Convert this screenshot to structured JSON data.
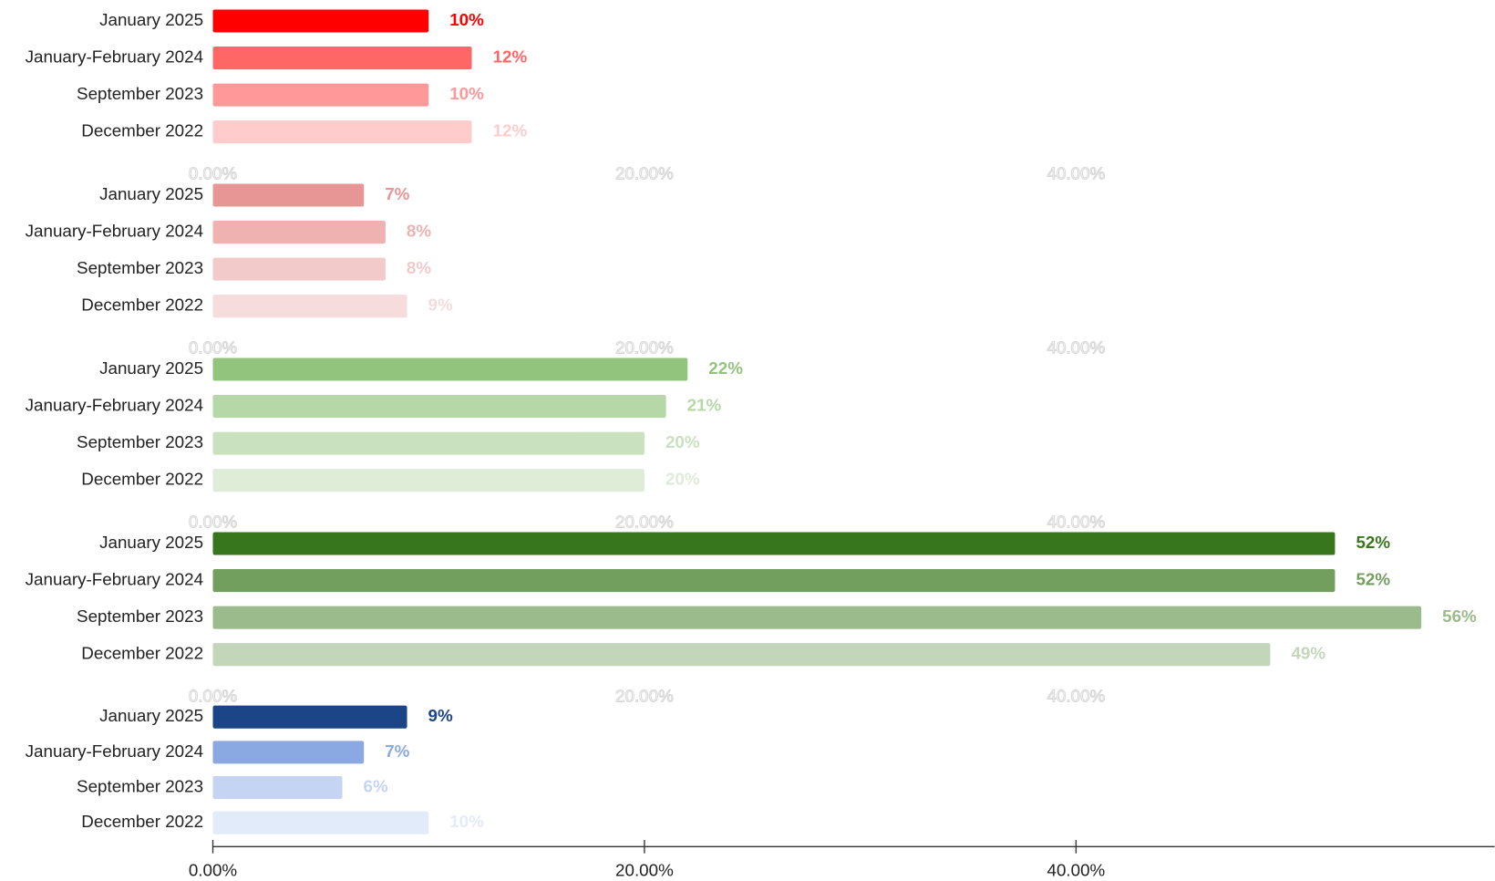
{
  "chart_data": [
    {
      "type": "bar",
      "orientation": "horizontal",
      "categories": [
        "January 2025",
        "January-February 2024",
        "September 2023",
        "December 2022"
      ],
      "values": [
        10,
        12,
        10,
        12
      ],
      "value_labels": [
        "10%",
        "12%",
        "10%",
        "12%"
      ],
      "colors": [
        "#ff0000",
        "#ff6666",
        "#ff9999",
        "#ffcccc"
      ],
      "xlim": [
        0,
        59.4
      ],
      "xticks": [
        {
          "value": 0,
          "label": "0.00%"
        },
        {
          "value": 20,
          "label": "20.00%"
        },
        {
          "value": 40,
          "label": "40.00%"
        }
      ],
      "axis_line": false
    },
    {
      "type": "bar",
      "orientation": "horizontal",
      "categories": [
        "January 2025",
        "January-February 2024",
        "September 2023",
        "December 2022"
      ],
      "values": [
        7,
        8,
        8,
        9
      ],
      "value_labels": [
        "7%",
        "8%",
        "8%",
        "9%"
      ],
      "colors": [
        "#e89595",
        "#f0b1b1",
        "#f3caca",
        "#f6dcdc"
      ],
      "xlim": [
        0,
        59.4
      ],
      "xticks": [
        {
          "value": 0,
          "label": "0.00%"
        },
        {
          "value": 20,
          "label": "20.00%"
        },
        {
          "value": 40,
          "label": "40.00%"
        }
      ],
      "axis_line": false
    },
    {
      "type": "bar",
      "orientation": "horizontal",
      "categories": [
        "January 2025",
        "January-February 2024",
        "September 2023",
        "December 2022"
      ],
      "values": [
        22,
        21,
        20,
        20
      ],
      "value_labels": [
        "22%",
        "21%",
        "20%",
        "20%"
      ],
      "colors": [
        "#93c47d",
        "#b6d7a8",
        "#c9e1bf",
        "#deecd8"
      ],
      "xlim": [
        0,
        59.4
      ],
      "xticks": [
        {
          "value": 0,
          "label": "0.00%"
        },
        {
          "value": 20,
          "label": "20.00%"
        },
        {
          "value": 40,
          "label": "40.00%"
        }
      ],
      "axis_line": false
    },
    {
      "type": "bar",
      "orientation": "horizontal",
      "categories": [
        "January 2025",
        "January-February 2024",
        "September 2023",
        "December 2022"
      ],
      "values": [
        52,
        52,
        56,
        49
      ],
      "value_labels": [
        "52%",
        "52%",
        "56%",
        "49%"
      ],
      "colors": [
        "#38761d",
        "#739f5e",
        "#9bbb8c",
        "#c3d6ba"
      ],
      "xlim": [
        0,
        59.4
      ],
      "xticks": [
        {
          "value": 0,
          "label": "0.00%"
        },
        {
          "value": 20,
          "label": "20.00%"
        },
        {
          "value": 40,
          "label": "40.00%"
        }
      ],
      "axis_line": false
    },
    {
      "type": "bar",
      "orientation": "horizontal",
      "categories": [
        "January 2025",
        "January-February 2024",
        "September 2023",
        "December 2022"
      ],
      "values": [
        9,
        7,
        6,
        10
      ],
      "value_labels": [
        "9%",
        "7%",
        "6%",
        "10%"
      ],
      "colors": [
        "#1c4587",
        "#8aa8e2",
        "#c4d4f2",
        "#e2ebf9"
      ],
      "xlim": [
        0,
        59.4
      ],
      "xticks": [
        {
          "value": 0,
          "label": "0.00%"
        },
        {
          "value": 20,
          "label": "20.00%"
        },
        {
          "value": 40,
          "label": "40.00%"
        }
      ],
      "axis_line": true
    }
  ]
}
